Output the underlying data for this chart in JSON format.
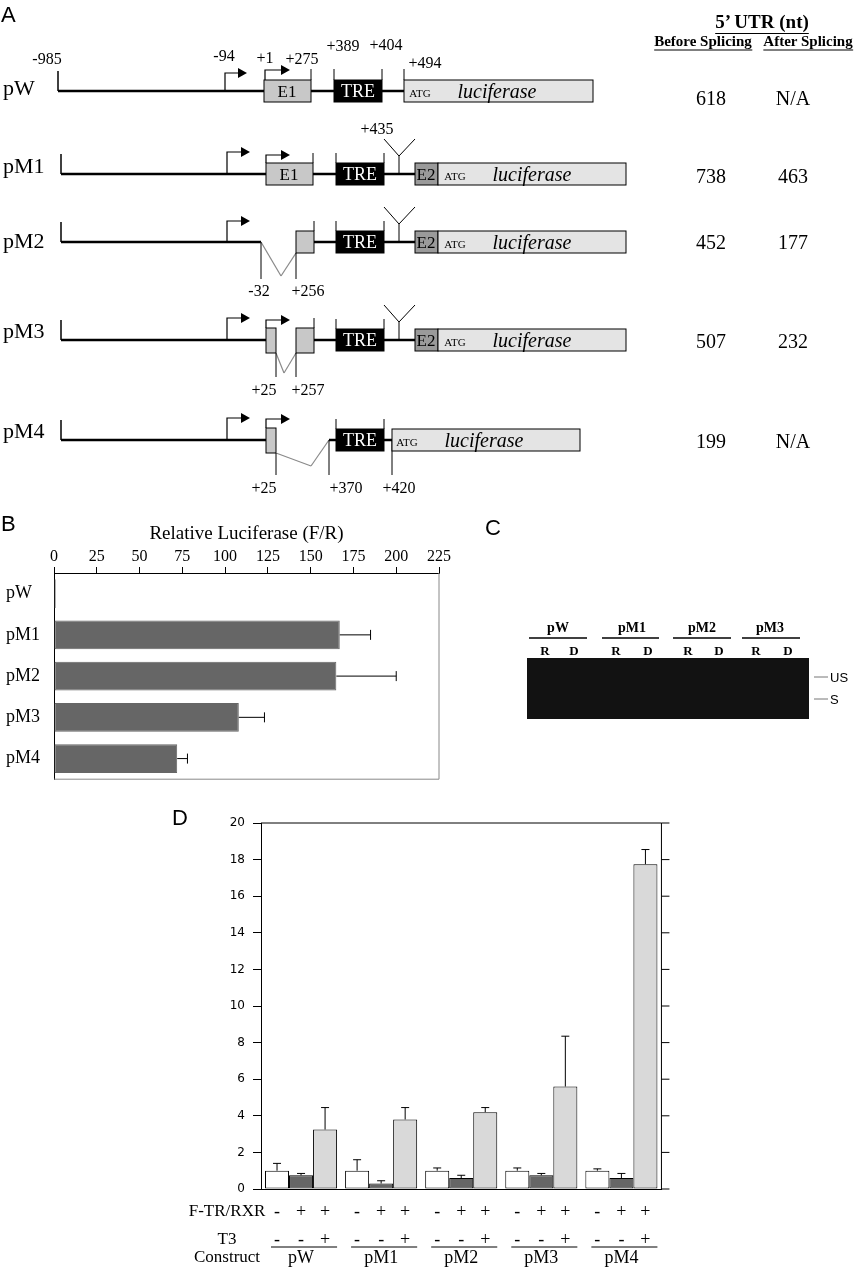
{
  "chart_data": [
    {
      "type": "other",
      "title": "A",
      "categories": [
        "pW",
        "pM1",
        "pM2",
        "pM3",
        "pM4"
      ],
      "data_labels": true,
      "series": [
        {
          "name": "Before Splicing",
          "values": [
            618,
            738,
            452,
            507,
            199
          ]
        },
        {
          "name": "After Splicing",
          "values": [
            null,
            463,
            177,
            232,
            null
          ],
          "value_labels": [
            "N/A",
            "463",
            "177",
            "232",
            "N/A"
          ]
        }
      ],
      "annotations": [
        "5’ UTR (nt)",
        "-985",
        "-94",
        "+1",
        "+275",
        "+389",
        "+404",
        "+494",
        "E1",
        "TRE",
        "ATG",
        "luciferase",
        "+435",
        "E1",
        "TRE",
        "E2",
        "ATG",
        "luciferase",
        "TRE",
        "E2",
        "ATG",
        "luciferase",
        "-32",
        "+256",
        "TRE",
        "E2",
        "ATG",
        "luciferase",
        "+25",
        "+257",
        "TRE",
        "ATG",
        "luciferase",
        "+25",
        "+370",
        "+420"
      ]
    },
    {
      "type": "bar",
      "orientation": "horizontal",
      "title": "B",
      "xlabel": "Relative Luciferase (F/R)",
      "categories": [
        "pW",
        "pM1",
        "pM2",
        "pM3",
        "pM4"
      ],
      "values": [
        1,
        167,
        165,
        108,
        72
      ],
      "errors": [
        null,
        [
          167,
          185
        ],
        [
          165,
          200
        ],
        [
          108,
          123
        ],
        [
          72,
          78
        ]
      ],
      "color": "#666666",
      "xlim": [
        0,
        225
      ],
      "xticks": [
        0,
        25,
        50,
        75,
        100,
        125,
        150,
        175,
        200,
        225
      ]
    },
    {
      "type": "other",
      "title": "C",
      "categories": [
        "pW",
        "pM1",
        "pM2",
        "pM3"
      ],
      "annotations": [
        "R",
        "D",
        "R",
        "D",
        "R",
        "D",
        "R",
        "D",
        "US",
        "S"
      ]
    },
    {
      "type": "bar",
      "title": "D",
      "categories": [
        "pW",
        "pM1",
        "pM2",
        "pM3",
        "pM4"
      ],
      "series": [
        {
          "color": "#ffffff",
          "values": [
            1.0,
            1.0,
            1.0,
            1.0,
            1.0
          ],
          "errors": [
            [
              1.0,
              1.4
            ],
            [
              1.0,
              1.6
            ],
            [
              1.0,
              1.15
            ],
            [
              1.0,
              1.15
            ],
            [
              1.0,
              1.1
            ]
          ]
        },
        {
          "color": "#666666",
          "values": [
            0.75,
            0.3,
            0.6,
            0.75,
            0.6
          ],
          "errors": [
            [
              0.75,
              0.85
            ],
            [
              0.3,
              0.45
            ],
            [
              0.6,
              0.75
            ],
            [
              0.75,
              0.85
            ],
            [
              0.6,
              0.85
            ]
          ]
        },
        {
          "color": "#d9d9d9",
          "values": [
            3.25,
            3.8,
            4.2,
            5.6,
            17.75
          ],
          "errors": [
            [
              3.25,
              4.45
            ],
            [
              3.8,
              4.45
            ],
            [
              4.2,
              4.45
            ],
            [
              5.6,
              8.35
            ],
            [
              17.75,
              18.55
            ]
          ]
        }
      ],
      "ylim": [
        0,
        20
      ],
      "yticks": [
        0,
        2,
        4,
        6,
        8,
        10,
        12,
        14,
        16,
        18,
        20
      ],
      "annotations": [
        "F-TR/RXR",
        "-",
        "+",
        "+",
        "-",
        "+",
        "+",
        "-",
        "+",
        "+",
        "-",
        "+",
        "+",
        "-",
        "+",
        "+",
        "T3",
        "-",
        "-",
        "+",
        "-",
        "-",
        "+",
        "-",
        "-",
        "+",
        "-",
        "-",
        "+",
        "-",
        "-",
        "+",
        "Construct"
      ]
    }
  ]
}
